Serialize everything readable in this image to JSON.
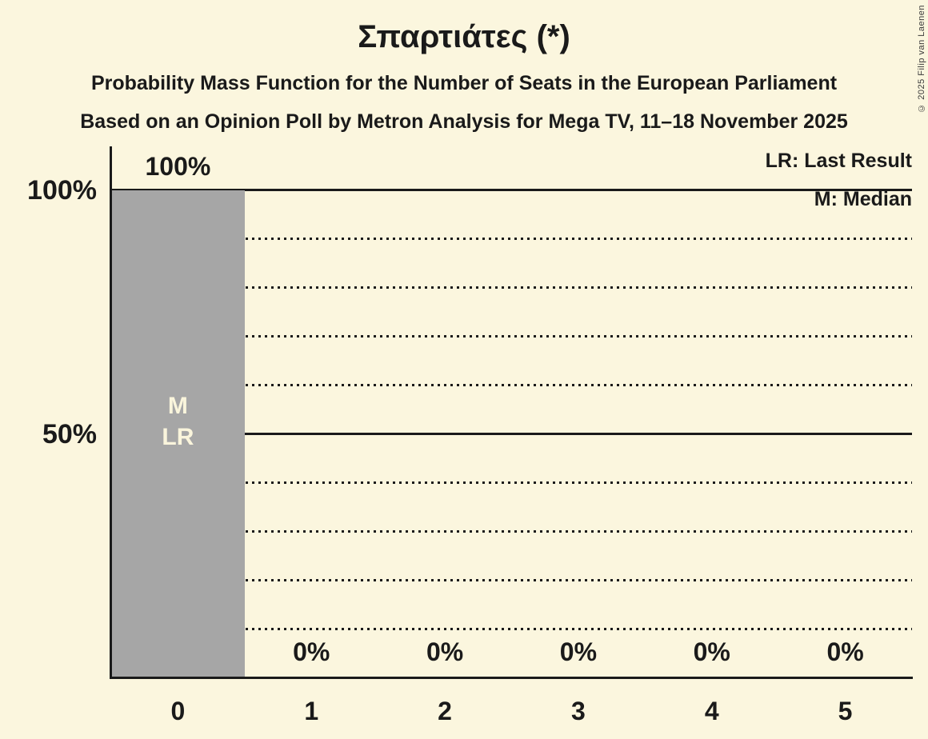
{
  "title": "Σπαρτιάτες (*)",
  "subtitle1": "Probability Mass Function for the Number of Seats in the European Parliament",
  "subtitle2": "Based on an Opinion Poll by Metron Analysis for Mega TV, 11–18 November 2025",
  "copyright": "© 2025 Filip van Laenen",
  "legend": {
    "lr": "LR: Last Result",
    "m": "M: Median"
  },
  "y_axis": {
    "top_label": "100%",
    "mid_label": "50%"
  },
  "colors": {
    "background": "#FBF6DE",
    "bar": "#A6A6A6",
    "text": "#1A1A1A",
    "bar_annotation_text": "#FAF5DC"
  },
  "chart_data": {
    "type": "bar",
    "title": "Σπαρτιάτες (*)",
    "xlabel": "Number of Seats in the European Parliament",
    "ylabel": "Probability",
    "categories": [
      "0",
      "1",
      "2",
      "3",
      "4",
      "5"
    ],
    "values": [
      100,
      0,
      0,
      0,
      0,
      0
    ],
    "value_labels": [
      "100%",
      "0%",
      "0%",
      "0%",
      "0%",
      "0%"
    ],
    "median_seats": 0,
    "last_result_seats": 0,
    "bar_annotation": {
      "column": 0,
      "lines": [
        "M",
        "LR"
      ]
    },
    "ylim": [
      0,
      100
    ],
    "gridlines_solid_pct": [
      50,
      100
    ],
    "gridlines_dotted_pct": [
      10,
      20,
      30,
      40,
      60,
      70,
      80,
      90
    ],
    "legend_position": "top-right",
    "grid": true
  }
}
